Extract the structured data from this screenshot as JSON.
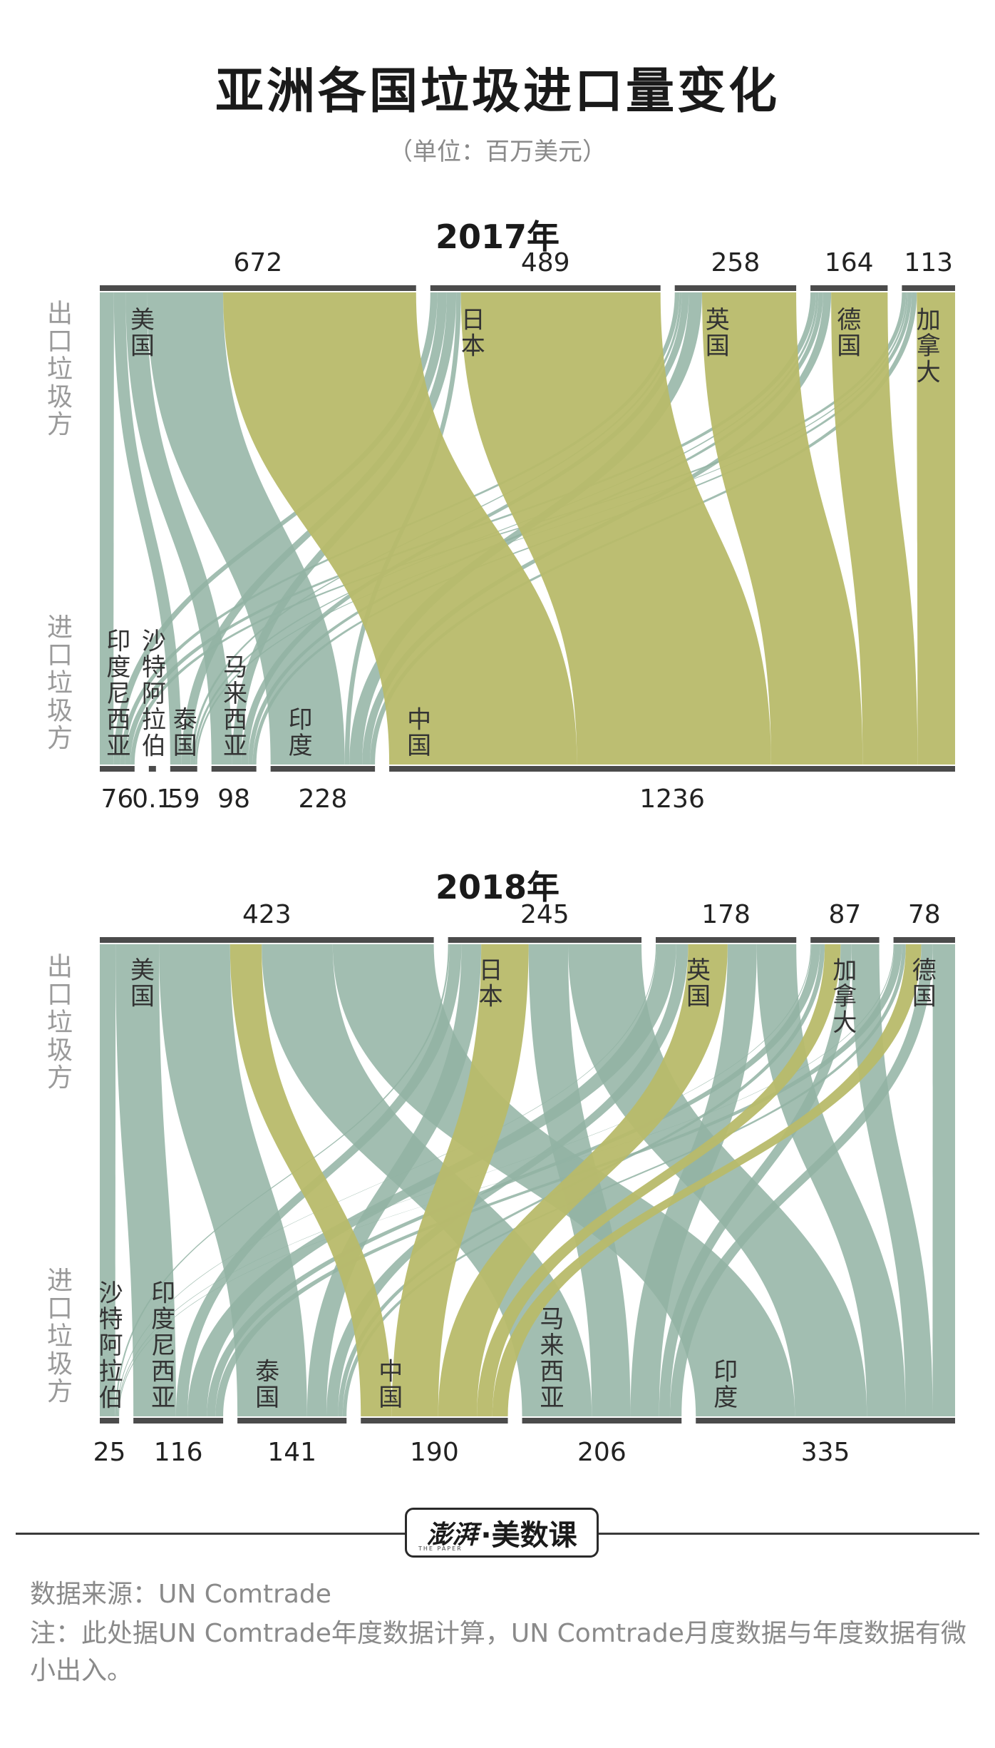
{
  "title": "亚洲各国垃圾进口量变化",
  "subtitle": "（单位：百万美元）",
  "side_labels": {
    "export": "出口垃圾方",
    "import": "进口垃圾方"
  },
  "colors": {
    "china_flow": "#b8bb6a",
    "other_flow": "#92b3a3",
    "bar": "#4b4b4b",
    "label": "#333333"
  },
  "chart_data": [
    {
      "type": "sankey",
      "title": "2017年",
      "exporters": [
        {
          "name": "美国",
          "value": 672
        },
        {
          "name": "日本",
          "value": 489
        },
        {
          "name": "英国",
          "value": 258
        },
        {
          "name": "德国",
          "value": 164
        },
        {
          "name": "加拿大",
          "value": 113
        }
      ],
      "importers": [
        {
          "name": "印度尼西亚",
          "value": 76,
          "label": "76"
        },
        {
          "name": "沙特阿拉伯",
          "value": 0.1,
          "label": "0.1"
        },
        {
          "name": "泰国",
          "value": 59,
          "label": "59"
        },
        {
          "name": "马来西亚",
          "value": 98,
          "label": "98"
        },
        {
          "name": "印度",
          "value": 228,
          "label": "228"
        },
        {
          "name": "中国",
          "value": 1236,
          "label": "1236"
        }
      ],
      "flows": [
        {
          "from": "美国",
          "to": "印度尼西亚",
          "value": 30
        },
        {
          "from": "美国",
          "to": "泰国",
          "value": 25
        },
        {
          "from": "美国",
          "to": "马来西亚",
          "value": 45
        },
        {
          "from": "美国",
          "to": "印度",
          "value": 162
        },
        {
          "from": "美国",
          "to": "中国",
          "value": 410
        },
        {
          "from": "日本",
          "to": "印度尼西亚",
          "value": 15
        },
        {
          "from": "日本",
          "to": "泰国",
          "value": 20
        },
        {
          "from": "日本",
          "to": "马来西亚",
          "value": 20
        },
        {
          "from": "日本",
          "to": "印度",
          "value": 10
        },
        {
          "from": "日本",
          "to": "中国",
          "value": 424
        },
        {
          "from": "英国",
          "to": "印度尼西亚",
          "value": 10
        },
        {
          "from": "英国",
          "to": "泰国",
          "value": 5
        },
        {
          "from": "英国",
          "to": "马来西亚",
          "value": 15
        },
        {
          "from": "英国",
          "to": "印度",
          "value": 28
        },
        {
          "from": "英国",
          "to": "中国",
          "value": 200
        },
        {
          "from": "德国",
          "to": "印度尼西亚",
          "value": 12
        },
        {
          "from": "德国",
          "to": "泰国",
          "value": 5
        },
        {
          "from": "德国",
          "to": "马来西亚",
          "value": 10
        },
        {
          "from": "德国",
          "to": "印度",
          "value": 17
        },
        {
          "from": "德国",
          "to": "中国",
          "value": 120
        },
        {
          "from": "加拿大",
          "to": "印度尼西亚",
          "value": 9
        },
        {
          "from": "加拿大",
          "to": "泰国",
          "value": 4
        },
        {
          "from": "加拿大",
          "to": "马来西亚",
          "value": 8
        },
        {
          "from": "加拿大",
          "to": "印度",
          "value": 11
        },
        {
          "from": "加拿大",
          "to": "中国",
          "value": 82
        }
      ]
    },
    {
      "type": "sankey",
      "title": "2018年",
      "exporters": [
        {
          "name": "美国",
          "value": 423
        },
        {
          "name": "日本",
          "value": 245
        },
        {
          "name": "英国",
          "value": 178
        },
        {
          "name": "加拿大",
          "value": 87
        },
        {
          "name": "德国",
          "value": 78
        }
      ],
      "importers": [
        {
          "name": "沙特阿拉伯",
          "value": 25,
          "label": "25"
        },
        {
          "name": "印度尼西亚",
          "value": 116,
          "label": "116"
        },
        {
          "name": "泰国",
          "value": 141,
          "label": "141"
        },
        {
          "name": "中国",
          "value": 190,
          "label": "190"
        },
        {
          "name": "马来西亚",
          "value": 206,
          "label": "206"
        },
        {
          "name": "印度",
          "value": 335,
          "label": "335"
        }
      ],
      "flows": [
        {
          "from": "美国",
          "to": "沙特阿拉伯",
          "value": 20
        },
        {
          "from": "美国",
          "to": "印度尼西亚",
          "value": 55
        },
        {
          "from": "美国",
          "to": "泰国",
          "value": 90
        },
        {
          "from": "美国",
          "to": "中国",
          "value": 40
        },
        {
          "from": "美国",
          "to": "马来西亚",
          "value": 90
        },
        {
          "from": "美国",
          "to": "印度",
          "value": 128
        },
        {
          "from": "日本",
          "to": "沙特阿拉伯",
          "value": 2
        },
        {
          "from": "日本",
          "to": "印度尼西亚",
          "value": 15
        },
        {
          "from": "日本",
          "to": "泰国",
          "value": 25
        },
        {
          "from": "日本",
          "to": "中国",
          "value": 60
        },
        {
          "from": "日本",
          "to": "马来西亚",
          "value": 50
        },
        {
          "from": "日本",
          "to": "印度",
          "value": 93
        },
        {
          "from": "英国",
          "to": "沙特阿拉伯",
          "value": 1
        },
        {
          "from": "英国",
          "to": "印度尼西亚",
          "value": 25
        },
        {
          "from": "英国",
          "to": "泰国",
          "value": 15
        },
        {
          "from": "英国",
          "to": "中国",
          "value": 50
        },
        {
          "from": "英国",
          "to": "马来西亚",
          "value": 37
        },
        {
          "from": "英国",
          "to": "印度",
          "value": 50
        },
        {
          "from": "加拿大",
          "to": "沙特阿拉伯",
          "value": 1
        },
        {
          "from": "加拿大",
          "to": "印度尼西亚",
          "value": 11
        },
        {
          "from": "加拿大",
          "to": "泰国",
          "value": 6
        },
        {
          "from": "加拿大",
          "to": "中国",
          "value": 20
        },
        {
          "from": "加拿大",
          "to": "马来西亚",
          "value": 14
        },
        {
          "from": "加拿大",
          "to": "印度",
          "value": 35
        },
        {
          "from": "德国",
          "to": "沙特阿拉伯",
          "value": 1
        },
        {
          "from": "德国",
          "to": "印度尼西亚",
          "value": 10
        },
        {
          "from": "德国",
          "to": "泰国",
          "value": 5
        },
        {
          "from": "德国",
          "to": "中国",
          "value": 20
        },
        {
          "from": "德国",
          "to": "马来西亚",
          "value": 15
        },
        {
          "from": "德国",
          "to": "印度",
          "value": 29
        }
      ]
    }
  ],
  "logo": {
    "brand": "澎湃",
    "tiny": "THE PAPER",
    "sub": "·美数课"
  },
  "footer": {
    "source": "数据来源：UN Comtrade",
    "note": "注：此处据UN Comtrade年度数据计算，UN Comtrade月度数据与年度数据有微小出入。"
  }
}
